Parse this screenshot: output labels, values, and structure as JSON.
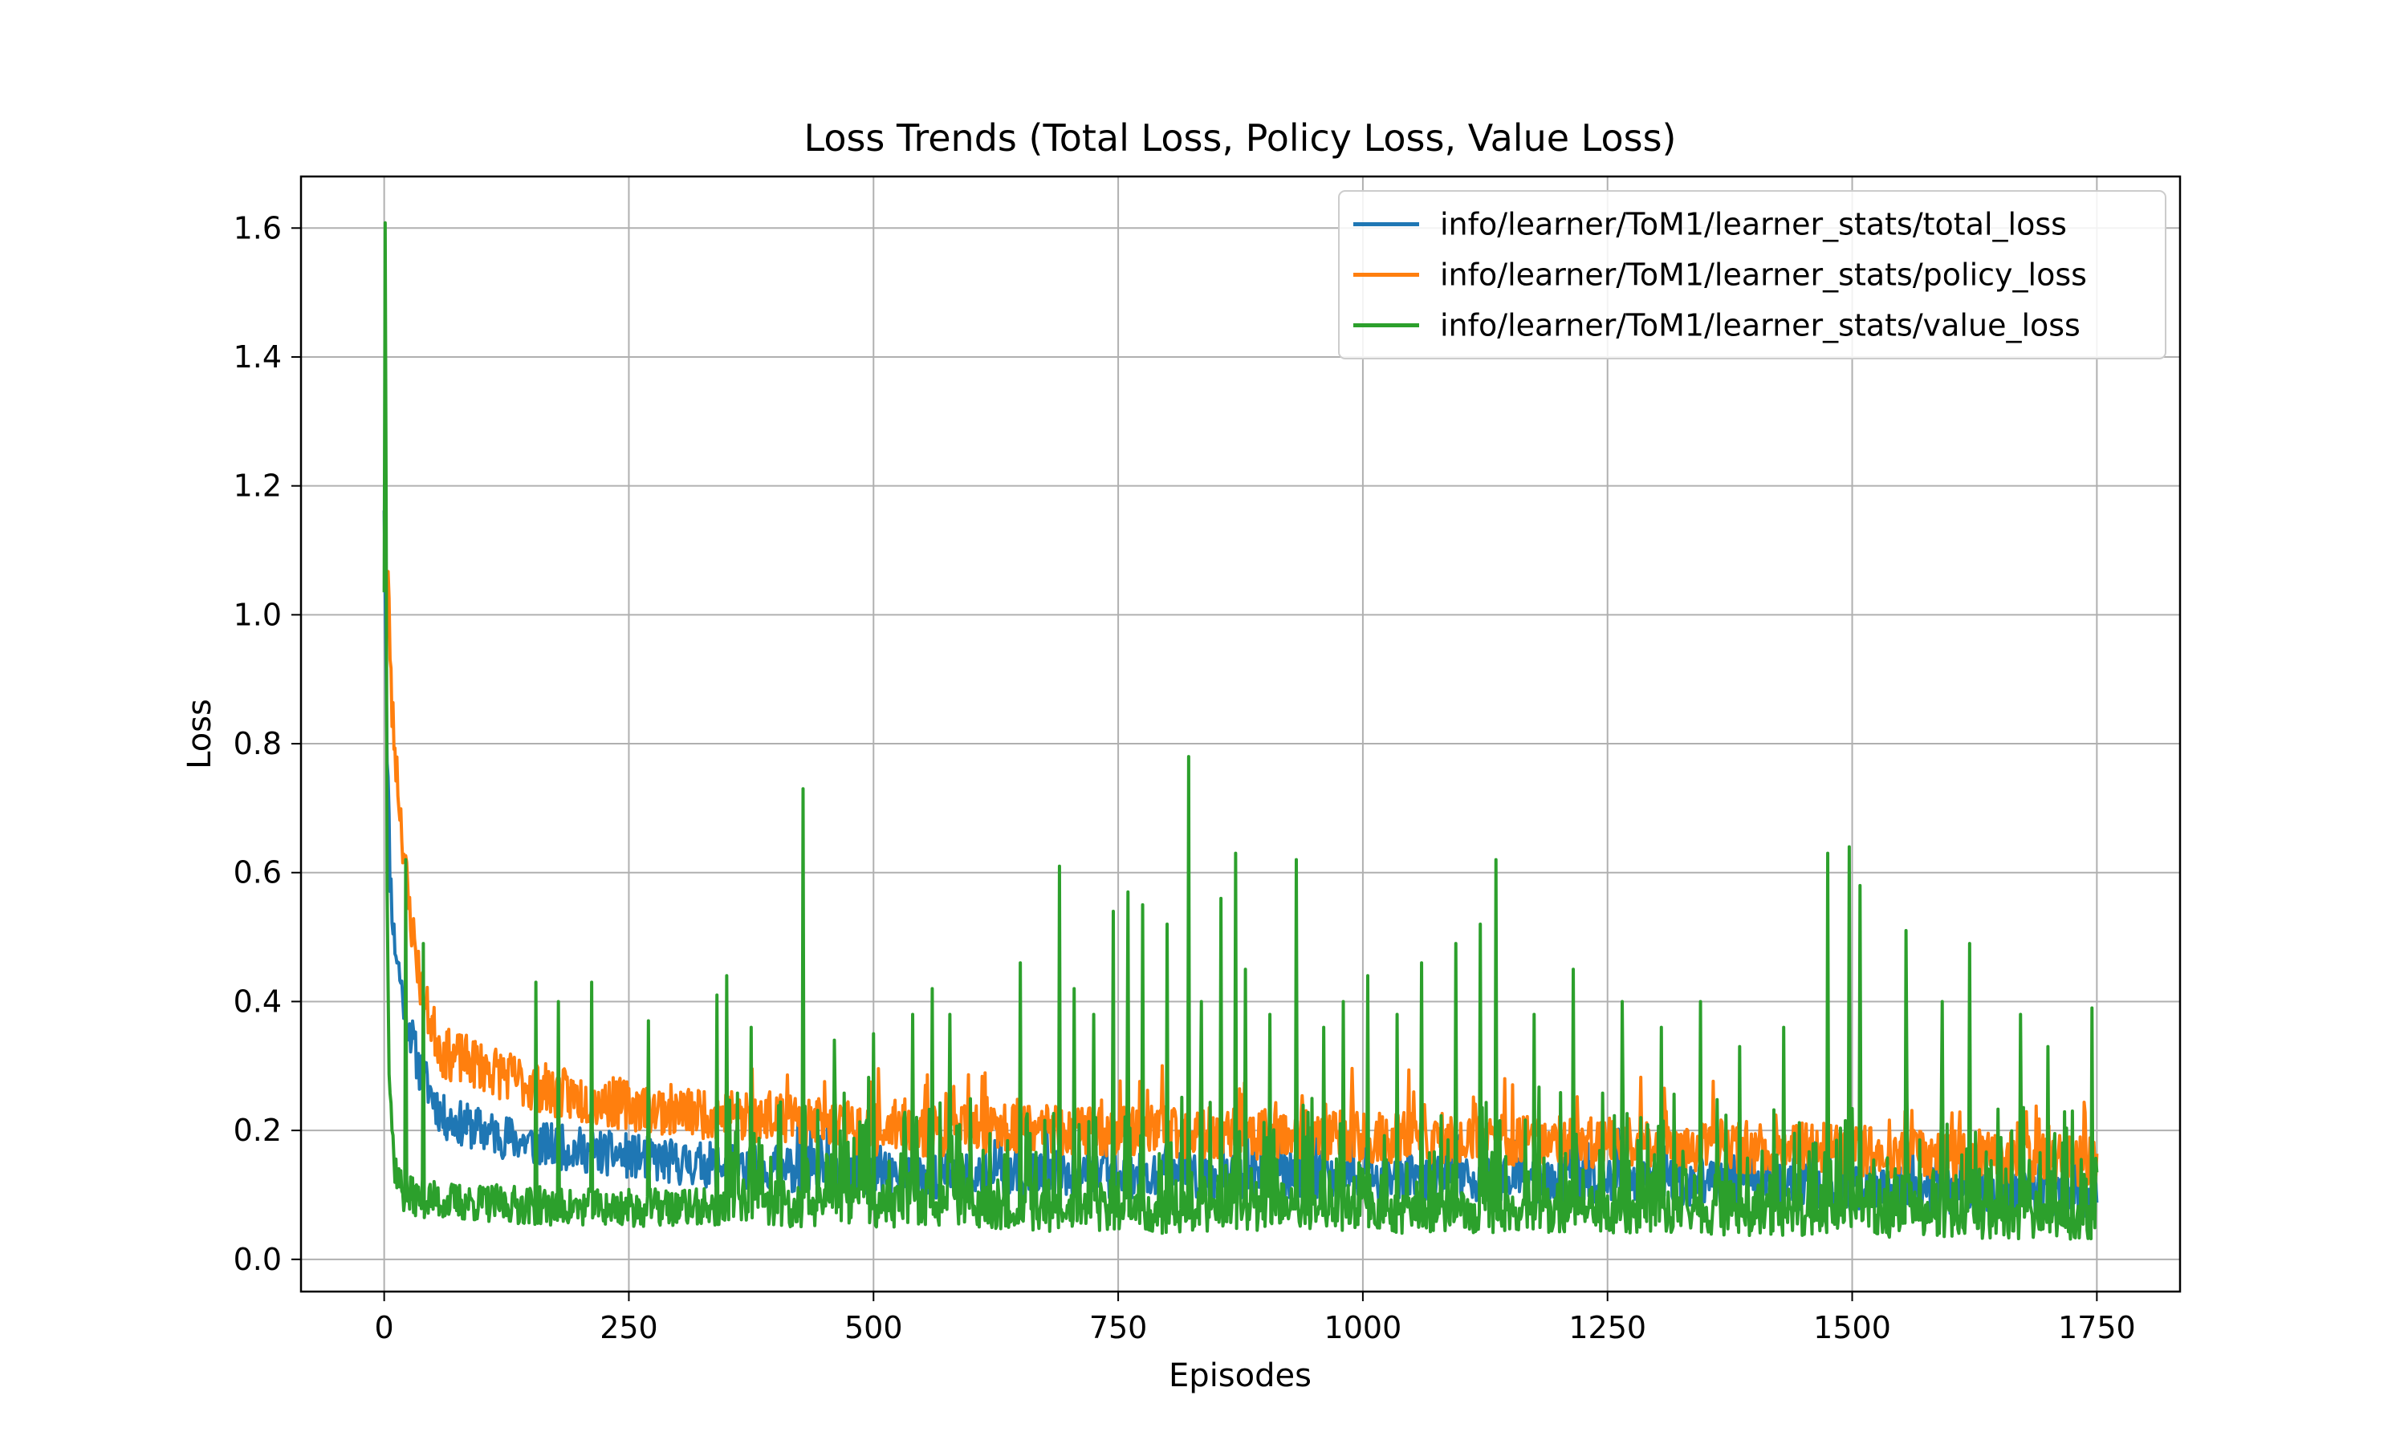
{
  "chart_data": {
    "type": "line",
    "title": "Loss Trends (Total Loss, Policy Loss, Value Loss)",
    "xlabel": "Episodes",
    "ylabel": "Loss",
    "xlim": [
      -85,
      1835
    ],
    "ylim": [
      -0.05,
      1.68
    ],
    "xticks": [
      0,
      250,
      500,
      750,
      1000,
      1250,
      1500,
      1750
    ],
    "yticks": [
      0.0,
      0.2,
      0.4,
      0.6,
      0.8,
      1.0,
      1.2,
      1.4,
      1.6
    ],
    "grid": true,
    "legend_position": "upper right",
    "series": [
      {
        "name": "info/learner/ToM1/learner_stats/total_loss",
        "color": "#1f77b4",
        "anchors": [
          [
            0,
            1.18
          ],
          [
            3,
            0.8
          ],
          [
            6,
            0.6
          ],
          [
            10,
            0.5
          ],
          [
            20,
            0.4
          ],
          [
            35,
            0.3
          ],
          [
            60,
            0.22
          ],
          [
            100,
            0.2
          ],
          [
            150,
            0.18
          ],
          [
            200,
            0.17
          ],
          [
            300,
            0.15
          ],
          [
            400,
            0.14
          ],
          [
            500,
            0.13
          ],
          [
            750,
            0.13
          ],
          [
            1000,
            0.13
          ],
          [
            1250,
            0.12
          ],
          [
            1500,
            0.11
          ],
          [
            1750,
            0.1
          ]
        ],
        "noise": 0.035,
        "seed": 11,
        "spikes": []
      },
      {
        "name": "info/learner/ToM1/learner_stats/policy_loss",
        "color": "#ff7f0e",
        "anchors": [
          [
            0,
            1.08
          ],
          [
            4,
            1.05
          ],
          [
            8,
            0.85
          ],
          [
            15,
            0.72
          ],
          [
            25,
            0.55
          ],
          [
            40,
            0.4
          ],
          [
            60,
            0.32
          ],
          [
            100,
            0.3
          ],
          [
            150,
            0.27
          ],
          [
            200,
            0.25
          ],
          [
            300,
            0.23
          ],
          [
            400,
            0.22
          ],
          [
            500,
            0.2
          ],
          [
            750,
            0.2
          ],
          [
            1000,
            0.19
          ],
          [
            1250,
            0.18
          ],
          [
            1500,
            0.17
          ],
          [
            1750,
            0.15
          ]
        ],
        "noise": 0.04,
        "seed": 23,
        "spikes": []
      },
      {
        "name": "info/learner/ToM1/learner_stats/value_loss",
        "color": "#2ca02c",
        "anchors": [
          [
            0,
            1.05
          ],
          [
            1,
            1.6
          ],
          [
            2,
            1.2
          ],
          [
            3,
            0.6
          ],
          [
            5,
            0.3
          ],
          [
            10,
            0.15
          ],
          [
            20,
            0.1
          ],
          [
            60,
            0.09
          ],
          [
            200,
            0.08
          ],
          [
            350,
            0.08
          ],
          [
            500,
            0.08
          ],
          [
            750,
            0.07
          ],
          [
            1000,
            0.07
          ],
          [
            1250,
            0.07
          ],
          [
            1500,
            0.065
          ],
          [
            1750,
            0.06
          ]
        ],
        "noise": 0.03,
        "seed": 37,
        "spikes": [
          [
            22,
            0.62
          ],
          [
            40,
            0.49
          ],
          [
            155,
            0.43
          ],
          [
            178,
            0.4
          ],
          [
            212,
            0.43
          ],
          [
            270,
            0.37
          ],
          [
            340,
            0.41
          ],
          [
            350,
            0.44
          ],
          [
            375,
            0.36
          ],
          [
            428,
            0.73
          ],
          [
            460,
            0.34
          ],
          [
            500,
            0.35
          ],
          [
            540,
            0.38
          ],
          [
            560,
            0.42
          ],
          [
            578,
            0.38
          ],
          [
            650,
            0.46
          ],
          [
            690,
            0.61
          ],
          [
            705,
            0.42
          ],
          [
            725,
            0.38
          ],
          [
            745,
            0.54
          ],
          [
            760,
            0.57
          ],
          [
            775,
            0.55
          ],
          [
            800,
            0.52
          ],
          [
            822,
            0.78
          ],
          [
            835,
            0.4
          ],
          [
            855,
            0.56
          ],
          [
            870,
            0.63
          ],
          [
            880,
            0.45
          ],
          [
            905,
            0.38
          ],
          [
            932,
            0.62
          ],
          [
            960,
            0.36
          ],
          [
            980,
            0.4
          ],
          [
            1005,
            0.44
          ],
          [
            1035,
            0.38
          ],
          [
            1060,
            0.46
          ],
          [
            1095,
            0.49
          ],
          [
            1120,
            0.52
          ],
          [
            1136,
            0.62
          ],
          [
            1175,
            0.38
          ],
          [
            1215,
            0.45
          ],
          [
            1265,
            0.4
          ],
          [
            1305,
            0.36
          ],
          [
            1345,
            0.4
          ],
          [
            1385,
            0.33
          ],
          [
            1430,
            0.36
          ],
          [
            1475,
            0.63
          ],
          [
            1497,
            0.64
          ],
          [
            1508,
            0.58
          ],
          [
            1555,
            0.51
          ],
          [
            1592,
            0.4
          ],
          [
            1620,
            0.49
          ],
          [
            1672,
            0.38
          ],
          [
            1700,
            0.33
          ],
          [
            1725,
            0.23
          ],
          [
            1745,
            0.39
          ]
        ]
      }
    ]
  }
}
